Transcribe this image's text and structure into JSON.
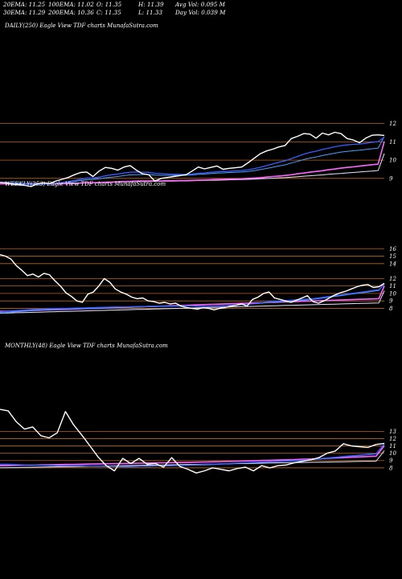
{
  "header": {
    "rows": [
      [
        "20EMA: 11.25",
        "100EMA: 11.02",
        "O: 11.35",
        "H: 11.39",
        "Avg Vol: 0.095 M"
      ],
      [
        "30EMA: 11.29",
        "200EMA: 10.36",
        "C: 11.35",
        "L: 11.33",
        "Day Vol: 0.039 M"
      ]
    ]
  },
  "panels": [
    {
      "label": "DAILY(250) Eagle  View  TDF charts MunafaSutra.com"
    },
    {
      "label": "WEEKLY(253) Eagle  View  TDF charts MunafaSutra.com"
    },
    {
      "label": "MONTHLY(48) Eagle  View  TDF charts MunafaSutra.com"
    }
  ],
  "colors": {
    "price": "#ffffff",
    "ema20": "#3a5cff",
    "ema30": "#4aa0ff",
    "ema100": "#ff66ff",
    "ema200": "#e8e8ff",
    "grid": "#b8661a"
  },
  "chart_data": [
    {
      "type": "line",
      "title": "DAILY(250) Eagle View TDF charts MunafaSutra.com",
      "ylim": [
        8.2,
        12.6
      ],
      "yticks": [
        "12",
        "11",
        "10",
        "9"
      ],
      "series": [
        {
          "values": [
            8.78,
            8.76,
            8.68,
            8.66,
            8.62,
            8.55,
            8.7,
            8.76,
            8.72,
            8.85,
            8.95,
            9.05,
            9.2,
            9.32,
            9.35,
            9.1,
            9.4,
            9.6,
            9.55,
            9.45,
            9.62,
            9.7,
            9.45,
            9.25,
            9.2,
            8.85,
            9.0,
            9.05,
            9.1,
            9.15,
            9.2,
            9.4,
            9.62,
            9.52,
            9.6,
            9.68,
            9.5,
            9.55,
            9.58,
            9.62,
            9.85,
            10.1,
            10.35,
            10.5,
            10.6,
            10.72,
            10.8,
            11.18,
            11.3,
            11.45,
            11.42,
            11.2,
            11.48,
            11.38,
            11.52,
            11.45,
            11.18,
            11.1,
            10.95,
            11.2,
            11.36,
            11.38,
            11.35
          ]
        },
        {
          "values": [
            8.78,
            8.76,
            8.74,
            8.72,
            8.7,
            8.66,
            8.67,
            8.69,
            8.7,
            8.73,
            8.77,
            8.82,
            8.88,
            8.95,
            9.02,
            9.02,
            9.07,
            9.14,
            9.2,
            9.24,
            9.29,
            9.34,
            9.35,
            9.34,
            9.33,
            9.28,
            9.26,
            9.24,
            9.23,
            9.22,
            9.22,
            9.24,
            9.28,
            9.3,
            9.33,
            9.36,
            9.38,
            9.39,
            9.41,
            9.43,
            9.47,
            9.53,
            9.61,
            9.7,
            9.79,
            9.88,
            9.96,
            10.08,
            10.2,
            10.32,
            10.42,
            10.49,
            10.58,
            10.65,
            10.73,
            10.79,
            10.83,
            10.86,
            10.88,
            10.92,
            10.97,
            11.01,
            11.25
          ]
        },
        {
          "values": [
            8.78,
            8.77,
            8.76,
            8.75,
            8.73,
            8.7,
            8.7,
            8.71,
            8.71,
            8.73,
            8.76,
            8.79,
            8.83,
            8.88,
            8.93,
            8.94,
            8.98,
            9.03,
            9.07,
            9.1,
            9.15,
            9.19,
            9.2,
            9.21,
            9.21,
            9.18,
            9.17,
            9.17,
            9.17,
            9.17,
            9.17,
            9.19,
            9.22,
            9.24,
            9.26,
            9.29,
            9.3,
            9.32,
            9.33,
            9.35,
            9.38,
            9.42,
            9.48,
            9.54,
            9.61,
            9.68,
            9.74,
            9.84,
            9.93,
            10.03,
            10.11,
            10.17,
            10.25,
            10.31,
            10.38,
            10.44,
            10.48,
            10.51,
            10.54,
            10.58,
            10.62,
            10.66,
            11.29
          ]
        },
        {
          "values": [
            8.7,
            8.7,
            8.7,
            8.7,
            8.7,
            8.7,
            8.7,
            8.7,
            8.7,
            8.71,
            8.71,
            8.72,
            8.73,
            8.74,
            8.76,
            8.76,
            8.77,
            8.79,
            8.8,
            8.81,
            8.83,
            8.84,
            8.85,
            8.86,
            8.86,
            8.86,
            8.86,
            8.87,
            8.87,
            8.88,
            8.88,
            8.89,
            8.9,
            8.91,
            8.92,
            8.94,
            8.95,
            8.96,
            8.97,
            8.98,
            9.0,
            9.02,
            9.04,
            9.07,
            9.1,
            9.13,
            9.16,
            9.2,
            9.25,
            9.29,
            9.34,
            9.38,
            9.42,
            9.47,
            9.51,
            9.56,
            9.6,
            9.63,
            9.67,
            9.71,
            9.75,
            9.78,
            11.02
          ]
        },
        {
          "values": [
            8.7,
            8.7,
            8.7,
            8.71,
            8.71,
            8.71,
            8.72,
            8.72,
            8.72,
            8.73,
            8.73,
            8.74,
            8.74,
            8.75,
            8.76,
            8.76,
            8.77,
            8.78,
            8.79,
            8.8,
            8.81,
            8.81,
            8.82,
            8.83,
            8.83,
            8.84,
            8.84,
            8.85,
            8.85,
            8.86,
            8.86,
            8.87,
            8.88,
            8.89,
            8.89,
            8.9,
            8.91,
            8.92,
            8.93,
            8.94,
            8.95,
            8.96,
            8.98,
            8.99,
            9.01,
            9.03,
            9.04,
            9.07,
            9.09,
            9.12,
            9.14,
            9.17,
            9.19,
            9.22,
            9.25,
            9.27,
            9.3,
            9.32,
            9.35,
            9.38,
            9.4,
            9.43,
            10.36
          ]
        }
      ]
    },
    {
      "type": "line",
      "title": "WEEKLY(253) Eagle View TDF charts MunafaSutra.com",
      "ylim": [
        6.0,
        17.0
      ],
      "yticks": [
        "16",
        "15",
        "14",
        "12",
        "11",
        "10",
        "9",
        "8"
      ],
      "series": [
        {
          "values": [
            15.2,
            15.0,
            14.6,
            13.7,
            13.1,
            12.4,
            12.6,
            12.2,
            12.7,
            12.5,
            11.7,
            11.0,
            10.1,
            9.6,
            9.0,
            8.8,
            9.9,
            10.2,
            11.0,
            12.0,
            11.5,
            10.6,
            10.2,
            9.9,
            9.5,
            9.3,
            9.4,
            9.0,
            8.9,
            8.7,
            8.8,
            8.6,
            8.7,
            8.3,
            8.1,
            8.0,
            7.9,
            8.1,
            8.0,
            7.8,
            8.0,
            8.1,
            8.3,
            8.4,
            8.6,
            8.3,
            9.2,
            9.5,
            10.0,
            10.2,
            9.4,
            9.2,
            9.0,
            8.8,
            9.1,
            9.4,
            9.7,
            8.9,
            8.7,
            9.0,
            9.4,
            9.8,
            10.1,
            10.3,
            10.6,
            10.9,
            11.1,
            11.2,
            10.8,
            10.9,
            11.35
          ]
        },
        {
          "values": [
            7.5,
            7.6,
            7.65,
            7.7,
            7.75,
            7.8,
            7.85,
            7.9,
            7.92,
            7.95,
            8.0,
            8.0,
            8.0,
            8.02,
            8.05,
            8.05,
            8.08,
            8.1,
            8.12,
            8.15,
            8.17,
            8.2,
            8.2,
            8.2,
            8.22,
            8.25,
            8.25,
            8.27,
            8.3,
            8.3,
            8.3,
            8.3,
            8.32,
            8.35,
            8.35,
            8.33,
            8.3,
            8.3,
            8.3,
            8.3,
            8.32,
            8.35,
            8.4,
            8.45,
            8.5,
            8.55,
            8.6,
            8.7,
            8.8,
            8.9,
            8.95,
            9.0,
            9.05,
            9.1,
            9.15,
            9.2,
            9.25,
            9.3,
            9.4,
            9.5,
            9.6,
            9.7,
            9.8,
            9.9,
            10.0,
            10.1,
            10.2,
            10.3,
            10.4,
            10.5,
            11.25
          ]
        },
        {
          "values": [
            7.4,
            7.45,
            7.5,
            7.55,
            7.6,
            7.65,
            7.7,
            7.75,
            7.8,
            7.82,
            7.85,
            7.9,
            7.9,
            7.92,
            7.95,
            7.95,
            7.97,
            8.0,
            8.02,
            8.05,
            8.07,
            8.1,
            8.12,
            8.12,
            8.15,
            8.17,
            8.2,
            8.22,
            8.22,
            8.25,
            8.25,
            8.27,
            8.3,
            8.3,
            8.32,
            8.32,
            8.3,
            8.3,
            8.3,
            8.32,
            8.35,
            8.37,
            8.4,
            8.45,
            8.5,
            8.55,
            8.6,
            8.65,
            8.72,
            8.8,
            8.85,
            8.9,
            8.95,
            9.0,
            9.05,
            9.1,
            9.15,
            9.2,
            9.3,
            9.4,
            9.5,
            9.6,
            9.7,
            9.8,
            9.9,
            10.0,
            10.1,
            10.2,
            10.3,
            10.4,
            11.29
          ]
        },
        {
          "values": [
            7.6,
            7.62,
            7.64,
            7.66,
            7.68,
            7.7,
            7.72,
            7.75,
            7.78,
            7.8,
            7.82,
            7.85,
            7.87,
            7.9,
            7.92,
            7.95,
            7.97,
            8.0,
            8.02,
            8.05,
            8.07,
            8.1,
            8.12,
            8.15,
            8.17,
            8.2,
            8.22,
            8.25,
            8.27,
            8.3,
            8.32,
            8.35,
            8.37,
            8.4,
            8.42,
            8.45,
            8.47,
            8.5,
            8.52,
            8.55,
            8.57,
            8.6,
            8.62,
            8.65,
            8.67,
            8.7,
            8.72,
            8.75,
            8.77,
            8.8,
            8.82,
            8.85,
            8.87,
            8.9,
            8.92,
            8.95,
            8.97,
            9.0,
            9.02,
            9.05,
            9.07,
            9.1,
            9.12,
            9.15,
            9.17,
            9.2,
            9.22,
            9.25,
            9.27,
            9.3,
            11.02
          ]
        },
        {
          "values": [
            7.35,
            7.37,
            7.39,
            7.41,
            7.43,
            7.45,
            7.47,
            7.49,
            7.51,
            7.53,
            7.55,
            7.57,
            7.59,
            7.61,
            7.63,
            7.65,
            7.67,
            7.69,
            7.71,
            7.73,
            7.75,
            7.77,
            7.79,
            7.81,
            7.83,
            7.85,
            7.87,
            7.89,
            7.91,
            7.93,
            7.95,
            7.97,
            7.99,
            8.01,
            8.03,
            8.05,
            8.07,
            8.09,
            8.11,
            8.13,
            8.15,
            8.17,
            8.19,
            8.21,
            8.23,
            8.25,
            8.27,
            8.29,
            8.31,
            8.33,
            8.35,
            8.37,
            8.39,
            8.41,
            8.43,
            8.45,
            8.47,
            8.49,
            8.51,
            8.53,
            8.55,
            8.57,
            8.59,
            8.61,
            8.63,
            8.65,
            8.67,
            8.69,
            8.71,
            8.73,
            10.36
          ]
        }
      ]
    },
    {
      "type": "line",
      "title": "MONTHLY(48) Eagle View TDF charts MunafaSutra.com",
      "ylim": [
        6.0,
        17.0
      ],
      "yticks": [
        "13",
        "12",
        "11",
        "10",
        "9",
        "8"
      ],
      "series": [
        {
          "values": [
            16.0,
            15.8,
            14.3,
            13.3,
            13.6,
            12.4,
            12.1,
            12.8,
            15.7,
            13.9,
            12.5,
            11.0,
            9.5,
            8.3,
            7.6,
            9.3,
            8.6,
            9.3,
            8.5,
            8.6,
            8.1,
            9.4,
            8.2,
            7.8,
            7.3,
            7.6,
            8.0,
            7.8,
            7.6,
            7.9,
            8.1,
            7.6,
            8.3,
            8.0,
            8.3,
            8.4,
            8.7,
            8.9,
            9.1,
            9.4,
            10.0,
            10.3,
            11.3,
            11.0,
            10.9,
            10.8,
            11.2,
            11.35
          ]
        },
        {
          "values": [
            8.5,
            8.5,
            8.45,
            8.4,
            8.4,
            8.35,
            8.35,
            8.3,
            8.3,
            8.3,
            8.3,
            8.25,
            8.25,
            8.2,
            8.2,
            8.2,
            8.2,
            8.2,
            8.25,
            8.25,
            8.3,
            8.3,
            8.35,
            8.35,
            8.4,
            8.45,
            8.5,
            8.55,
            8.6,
            8.65,
            8.7,
            8.75,
            8.8,
            8.85,
            8.9,
            8.95,
            9.0,
            9.05,
            9.15,
            9.25,
            9.35,
            9.45,
            9.55,
            9.65,
            9.75,
            9.85,
            9.95,
            11.25
          ]
        },
        {
          "values": [
            8.45,
            8.45,
            8.4,
            8.4,
            8.35,
            8.35,
            8.3,
            8.3,
            8.3,
            8.3,
            8.25,
            8.25,
            8.2,
            8.2,
            8.2,
            8.15,
            8.15,
            8.2,
            8.2,
            8.25,
            8.25,
            8.3,
            8.3,
            8.35,
            8.4,
            8.4,
            8.45,
            8.5,
            8.55,
            8.6,
            8.65,
            8.7,
            8.75,
            8.8,
            8.85,
            8.9,
            8.95,
            9.0,
            9.1,
            9.2,
            9.3,
            9.4,
            9.5,
            9.6,
            9.7,
            9.8,
            9.9,
            11.29
          ]
        },
        {
          "values": [
            8.3,
            8.32,
            8.34,
            8.36,
            8.38,
            8.4,
            8.42,
            8.44,
            8.46,
            8.48,
            8.5,
            8.52,
            8.54,
            8.56,
            8.58,
            8.6,
            8.62,
            8.64,
            8.66,
            8.68,
            8.7,
            8.72,
            8.74,
            8.76,
            8.78,
            8.8,
            8.83,
            8.86,
            8.89,
            8.92,
            8.95,
            8.98,
            9.01,
            9.04,
            9.07,
            9.1,
            9.14,
            9.18,
            9.22,
            9.26,
            9.3,
            9.35,
            9.4,
            9.45,
            9.5,
            9.55,
            9.6,
            11.02
          ]
        },
        {
          "values": [
            8.0,
            8.02,
            8.04,
            8.06,
            8.08,
            8.1,
            8.12,
            8.14,
            8.16,
            8.18,
            8.2,
            8.22,
            8.24,
            8.26,
            8.28,
            8.3,
            8.32,
            8.34,
            8.36,
            8.38,
            8.4,
            8.42,
            8.44,
            8.46,
            8.48,
            8.5,
            8.52,
            8.54,
            8.56,
            8.58,
            8.6,
            8.62,
            8.64,
            8.66,
            8.68,
            8.7,
            8.72,
            8.74,
            8.76,
            8.78,
            8.8,
            8.82,
            8.84,
            8.86,
            8.88,
            8.9,
            8.92,
            10.36
          ]
        }
      ]
    }
  ]
}
